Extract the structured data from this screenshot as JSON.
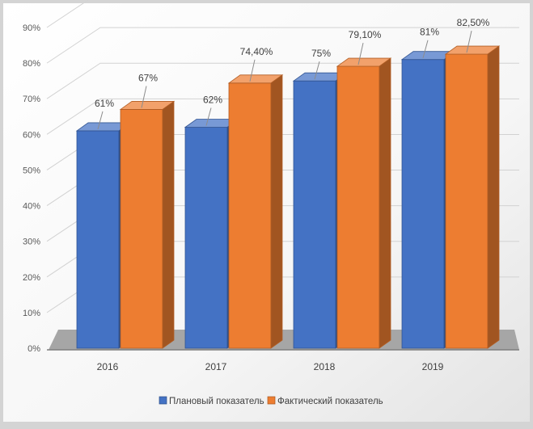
{
  "chart_data": {
    "type": "bar",
    "title": "",
    "xlabel": "",
    "ylabel": "",
    "categories": [
      "2016",
      "2017",
      "2018",
      "2019"
    ],
    "ylim": [
      0,
      90
    ],
    "yticks": [
      "0%",
      "10%",
      "20%",
      "30%",
      "40%",
      "50%",
      "60%",
      "70%",
      "80%",
      "90%"
    ],
    "grid": true,
    "legend_position": "bottom",
    "series": [
      {
        "name": "Плановый показатель",
        "values": [
          61,
          62,
          75,
          81
        ],
        "labels": [
          "61%",
          "62%",
          "75%",
          "81%"
        ],
        "color": "#4472c4"
      },
      {
        "name": "Фактический показатель",
        "values": [
          67,
          74.4,
          79.1,
          82.5
        ],
        "labels": [
          "67%",
          "74,40%",
          "79,10%",
          "82,50%"
        ],
        "color": "#ed7d31"
      }
    ]
  }
}
